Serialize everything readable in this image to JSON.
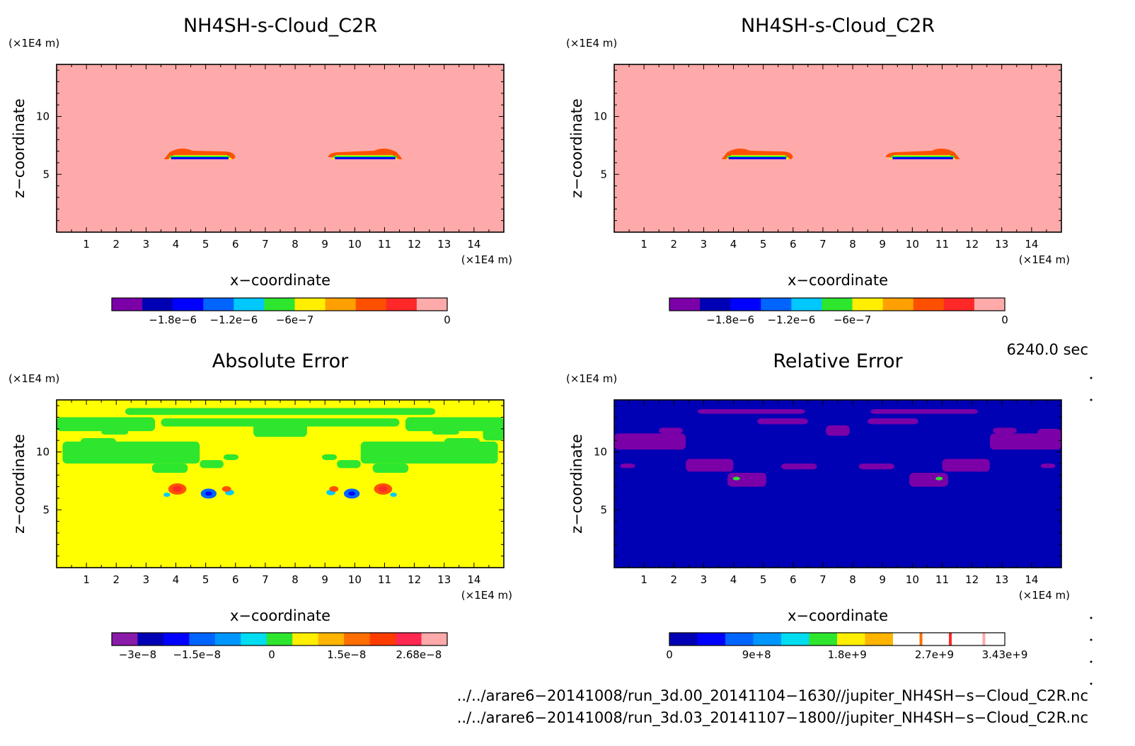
{
  "panels": [
    {
      "id": "tl",
      "title": "NH4SH-s-Cloud_C2R",
      "x_label": "x−coordinate",
      "y_label": "z−coordinate",
      "x_unit": "(×1E4 m)",
      "y_unit": "(×1E4 m)",
      "colorbar": {
        "colors": [
          "#7b00a8",
          "#0000b4",
          "#0000ff",
          "#0064ff",
          "#00c8ff",
          "#2ee62e",
          "#ffee00",
          "#ffa000",
          "#ff5000",
          "#ff2828",
          "#ffaaaa"
        ],
        "labels": [
          "−1.8e−6",
          "−1.2e−6",
          "−6e−7",
          "0"
        ]
      }
    },
    {
      "id": "tr",
      "title": "NH4SH-s-Cloud_C2R",
      "x_label": "x−coordinate",
      "y_label": "z−coordinate",
      "x_unit": "(×1E4 m)",
      "y_unit": "(×1E4 m)",
      "colorbar": {
        "colors": [
          "#7b00a8",
          "#0000b4",
          "#0000ff",
          "#0064ff",
          "#00c8ff",
          "#2ee62e",
          "#ffee00",
          "#ffa000",
          "#ff5000",
          "#ff2828",
          "#ffaaaa"
        ],
        "labels": [
          "−1.8e−6",
          "−1.2e−6",
          "−6e−7",
          "0"
        ]
      }
    },
    {
      "id": "bl",
      "title": "Absolute Error",
      "x_label": "x−coordinate",
      "y_label": "z−coordinate",
      "x_unit": "(×1E4 m)",
      "y_unit": "(×1E4 m)",
      "colorbar": {
        "colors": [
          "#8a1aa8",
          "#0000b4",
          "#0000ff",
          "#0064ff",
          "#0096ff",
          "#00dcf0",
          "#2ee62e",
          "#ffee00",
          "#ffb400",
          "#ff6e00",
          "#ff3c00",
          "#ff2850",
          "#ffaaaa"
        ],
        "labels": [
          "−3e−8",
          "−1.5e−8",
          "0",
          "1.5e−8",
          "2.68e−8"
        ]
      }
    },
    {
      "id": "br",
      "title": "Relative Error",
      "x_label": "x−coordinate",
      "y_label": "z−coordinate",
      "x_unit": "(×1E4 m)",
      "y_unit": "(×1E4 m)",
      "colorbar": {
        "colors": [
          "#0000b4",
          "#0000ff",
          "#0064ff",
          "#0096ff",
          "#00dcf0",
          "#2ee62e",
          "#ffee00",
          "#ffb400",
          "#ffffff",
          "#ffffff",
          "#ffffff",
          "#ffffff"
        ],
        "labels": [
          "0",
          "9e+8",
          "1.8e+9",
          "2.7e+9",
          "3.43e+9"
        ]
      }
    }
  ],
  "time_label": "6240.0 sec",
  "file_paths": [
    "../../arare6−20141008/run_3d.00_20141104−1630//jupiter_NH4SH−s−Cloud_C2R.nc",
    "../../arare6−20141008/run_3d.03_20141107−1800//jupiter_NH4SH−s−Cloud_C2R.nc"
  ],
  "colors": {
    "cloud_background": "#ffaaaa",
    "abs_background": "#ffff00",
    "abs_patch": "#2ee62e",
    "rel_background": "#0000b4",
    "rel_patch": "#7b00a8"
  },
  "chart_data": [
    {
      "type": "heatmap",
      "title": "NH4SH-s-Cloud_C2R",
      "xlabel": "x−coordinate",
      "ylabel": "z−coordinate",
      "x_unit": "(×1E4 m)",
      "y_unit": "(×1E4 m)",
      "xlim": [
        0,
        15
      ],
      "ylim": [
        0,
        14.5
      ],
      "x_ticks": [
        1,
        2,
        3,
        4,
        5,
        6,
        7,
        8,
        9,
        10,
        11,
        12,
        13,
        14
      ],
      "y_ticks": [
        5,
        10
      ],
      "colorbar_ticks": [
        -1.8e-06,
        -1.2e-06,
        -6e-07,
        0
      ],
      "features": [
        {
          "x_range": [
            3.6,
            6.0
          ],
          "z_range": [
            6.3,
            7.1
          ]
        },
        {
          "x_range": [
            9.1,
            11.6
          ],
          "z_range": [
            6.3,
            7.1
          ]
        }
      ]
    },
    {
      "type": "heatmap",
      "title": "NH4SH-s-Cloud_C2R",
      "xlabel": "x−coordinate",
      "ylabel": "z−coordinate",
      "x_unit": "(×1E4 m)",
      "y_unit": "(×1E4 m)",
      "xlim": [
        0,
        15
      ],
      "ylim": [
        0,
        14.5
      ],
      "x_ticks": [
        1,
        2,
        3,
        4,
        5,
        6,
        7,
        8,
        9,
        10,
        11,
        12,
        13,
        14
      ],
      "y_ticks": [
        5,
        10
      ],
      "colorbar_ticks": [
        -1.8e-06,
        -1.2e-06,
        -6e-07,
        0
      ],
      "features": [
        {
          "x_range": [
            3.6,
            6.0
          ],
          "z_range": [
            6.3,
            7.1
          ]
        },
        {
          "x_range": [
            9.1,
            11.6
          ],
          "z_range": [
            6.3,
            7.1
          ]
        }
      ]
    },
    {
      "type": "heatmap",
      "title": "Absolute Error",
      "xlabel": "x−coordinate",
      "ylabel": "z−coordinate",
      "x_unit": "(×1E4 m)",
      "y_unit": "(×1E4 m)",
      "xlim": [
        0,
        15
      ],
      "ylim": [
        0,
        14.5
      ],
      "x_ticks": [
        1,
        2,
        3,
        4,
        5,
        6,
        7,
        8,
        9,
        10,
        11,
        12,
        13,
        14
      ],
      "y_ticks": [
        5,
        10
      ],
      "colorbar_ticks": [
        -3e-08,
        -1.5e-08,
        0,
        1.5e-08,
        2.68e-08
      ]
    },
    {
      "type": "heatmap",
      "title": "Relative Error",
      "xlabel": "x−coordinate",
      "ylabel": "z−coordinate",
      "x_unit": "(×1E4 m)",
      "y_unit": "(×1E4 m)",
      "xlim": [
        0,
        15
      ],
      "ylim": [
        0,
        14.5
      ],
      "x_ticks": [
        1,
        2,
        3,
        4,
        5,
        6,
        7,
        8,
        9,
        10,
        11,
        12,
        13,
        14
      ],
      "y_ticks": [
        5,
        10
      ],
      "colorbar_ticks": [
        0,
        900000000.0,
        1800000000.0,
        2700000000.0,
        3430000000.0
      ]
    }
  ]
}
